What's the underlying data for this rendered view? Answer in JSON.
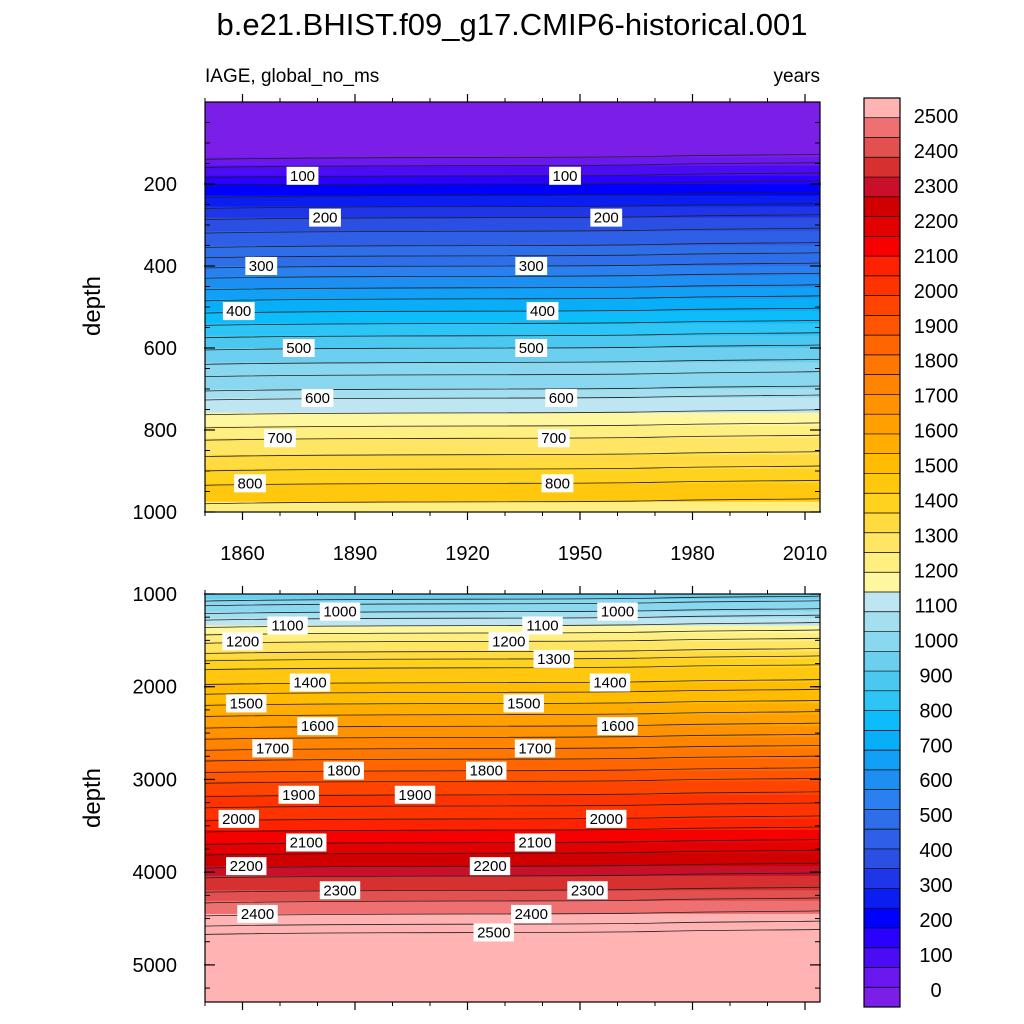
{
  "chart_data": {
    "type": "contour",
    "title": "b.e21.BHIST.f09_g17.CMIP6-historical.001",
    "left_string": "IAGE, global_no_ms",
    "right_string": "years",
    "xlabel": "",
    "ylabel": "depth",
    "xlim": [
      1850,
      2014
    ],
    "x_ticks": [
      "1860",
      "1890",
      "1920",
      "1950",
      "1980",
      "2010"
    ],
    "x_tick_values": [
      1860,
      1890,
      1920,
      1950,
      1980,
      2010
    ],
    "levels": [
      0,
      100,
      200,
      300,
      400,
      500,
      600,
      700,
      800,
      900,
      1000,
      1100,
      1200,
      1300,
      1400,
      1500,
      1600,
      1700,
      1800,
      1900,
      2000,
      2100,
      2200,
      2300,
      2400,
      2500
    ],
    "colorbar_labels": [
      "2500",
      "2400",
      "2300",
      "2200",
      "2100",
      "2000",
      "1900",
      "1800",
      "1700",
      "1600",
      "1500",
      "1400",
      "1300",
      "1200",
      "1100",
      "1000",
      "900",
      "800",
      "700",
      "600",
      "500",
      "400",
      "300",
      "200",
      "100",
      "0"
    ],
    "colors": [
      "#7b1fe8",
      "#6a17f0",
      "#4b0cf5",
      "#2a00ff",
      "#0000ff",
      "#0a1ef2",
      "#1f35e8",
      "#2c4fe3",
      "#2f5fe6",
      "#2f6ee9",
      "#2a80ee",
      "#1e8ff2",
      "#129ff6",
      "#09aef9",
      "#0dbcfb",
      "#2dc4f6",
      "#4bc8f0",
      "#6ccff0",
      "#8ad8f0",
      "#a4dff0",
      "#bde6f2",
      "#fff6a0",
      "#ffee80",
      "#ffe564",
      "#ffdb3f",
      "#ffd21e",
      "#ffc80f",
      "#ffbc00",
      "#ffae00",
      "#ffa000",
      "#ff9200",
      "#ff8400",
      "#ff7600",
      "#ff6600",
      "#ff5500",
      "#ff4400",
      "#ff3300",
      "#ff2200",
      "#f60000",
      "#e20000",
      "#d00000",
      "#c8102a",
      "#d63030",
      "#e35050",
      "#ef7070",
      "#ffb3b3"
    ],
    "panels": [
      {
        "name": "upper",
        "ylim": [
          0,
          1000
        ],
        "y_ticks": [
          "200",
          "400",
          "600",
          "800",
          "1000"
        ],
        "y_tick_values": [
          200,
          400,
          600,
          800,
          1000
        ],
        "data_top": 0,
        "isolines": [
          {
            "depth": 135,
            "label": "",
            "label_x": []
          },
          {
            "depth": 155,
            "label": "",
            "label_x": []
          },
          {
            "depth": 180,
            "label": "100",
            "label_x": [
              1876,
              1946
            ]
          },
          {
            "depth": 200,
            "label": "",
            "label_x": []
          },
          {
            "depth": 228,
            "label": "",
            "label_x": []
          },
          {
            "depth": 255,
            "label": "",
            "label_x": []
          },
          {
            "depth": 282,
            "label": "200",
            "label_x": [
              1882,
              1957
            ]
          },
          {
            "depth": 315,
            "label": "",
            "label_x": []
          },
          {
            "depth": 350,
            "label": "",
            "label_x": []
          },
          {
            "depth": 375,
            "label": "",
            "label_x": []
          },
          {
            "depth": 400,
            "label": "300",
            "label_x": [
              1865,
              1937
            ]
          },
          {
            "depth": 425,
            "label": "",
            "label_x": []
          },
          {
            "depth": 453,
            "label": "",
            "label_x": []
          },
          {
            "depth": 480,
            "label": "",
            "label_x": []
          },
          {
            "depth": 510,
            "label": "400",
            "label_x": [
              1859,
              1940
            ]
          },
          {
            "depth": 540,
            "label": "",
            "label_x": []
          },
          {
            "depth": 570,
            "label": "",
            "label_x": []
          },
          {
            "depth": 600,
            "label": "500",
            "label_x": [
              1875,
              1937
            ]
          },
          {
            "depth": 635,
            "label": "",
            "label_x": []
          },
          {
            "depth": 665,
            "label": "",
            "label_x": []
          },
          {
            "depth": 700,
            "label": "",
            "label_x": []
          },
          {
            "depth": 722,
            "label": "600",
            "label_x": [
              1880,
              1945
            ]
          },
          {
            "depth": 758,
            "label": "",
            "label_x": []
          },
          {
            "depth": 790,
            "label": "",
            "label_x": []
          },
          {
            "depth": 820,
            "label": "700",
            "label_x": [
              1870,
              1943
            ]
          },
          {
            "depth": 860,
            "label": "",
            "label_x": []
          },
          {
            "depth": 895,
            "label": "",
            "label_x": []
          },
          {
            "depth": 930,
            "label": "800",
            "label_x": [
              1862,
              1944
            ]
          },
          {
            "depth": 975,
            "label": "",
            "label_x": []
          }
        ]
      },
      {
        "name": "lower",
        "ylim": [
          1000,
          5400
        ],
        "y_ticks": [
          "1000",
          "2000",
          "3000",
          "4000",
          "5000"
        ],
        "y_tick_values": [
          1000,
          2000,
          3000,
          4000,
          5000
        ],
        "data_top": 1000,
        "isolines": [
          {
            "depth": 1055,
            "label": "",
            "label_x": []
          },
          {
            "depth": 1105,
            "label": "",
            "label_x": []
          },
          {
            "depth": 1190,
            "label": "1000",
            "label_x": [
              1886,
              1960
            ]
          },
          {
            "depth": 1260,
            "label": "",
            "label_x": []
          },
          {
            "depth": 1340,
            "label": "1100",
            "label_x": [
              1872,
              1940
            ]
          },
          {
            "depth": 1420,
            "label": "",
            "label_x": []
          },
          {
            "depth": 1510,
            "label": "1200",
            "label_x": [
              1860,
              1931
            ]
          },
          {
            "depth": 1620,
            "label": "",
            "label_x": []
          },
          {
            "depth": 1700,
            "label": "1300",
            "label_x": [
              1943
            ]
          },
          {
            "depth": 1795,
            "label": "",
            "label_x": []
          },
          {
            "depth": 1955,
            "label": "1400",
            "label_x": [
              1878,
              1958
            ]
          },
          {
            "depth": 2060,
            "label": "",
            "label_x": []
          },
          {
            "depth": 2180,
            "label": "1500",
            "label_x": [
              1861,
              1935
            ]
          },
          {
            "depth": 2300,
            "label": "",
            "label_x": []
          },
          {
            "depth": 2425,
            "label": "1600",
            "label_x": [
              1880,
              1960
            ]
          },
          {
            "depth": 2545,
            "label": "",
            "label_x": []
          },
          {
            "depth": 2665,
            "label": "1700",
            "label_x": [
              1868,
              1938
            ]
          },
          {
            "depth": 2780,
            "label": "",
            "label_x": []
          },
          {
            "depth": 2905,
            "label": "1800",
            "label_x": [
              1887,
              1925
            ]
          },
          {
            "depth": 3020,
            "label": "",
            "label_x": []
          },
          {
            "depth": 3165,
            "label": "1900",
            "label_x": [
              1875,
              1906
            ]
          },
          {
            "depth": 3285,
            "label": "",
            "label_x": []
          },
          {
            "depth": 3425,
            "label": "2000",
            "label_x": [
              1859,
              1957
            ]
          },
          {
            "depth": 3545,
            "label": "",
            "label_x": []
          },
          {
            "depth": 3680,
            "label": "2100",
            "label_x": [
              1877,
              1938
            ]
          },
          {
            "depth": 3795,
            "label": "",
            "label_x": []
          },
          {
            "depth": 3935,
            "label": "2200",
            "label_x": [
              1861,
              1926
            ]
          },
          {
            "depth": 4040,
            "label": "",
            "label_x": []
          },
          {
            "depth": 4195,
            "label": "2300",
            "label_x": [
              1886,
              1952
            ]
          },
          {
            "depth": 4310,
            "label": "",
            "label_x": []
          },
          {
            "depth": 4450,
            "label": "2400",
            "label_x": [
              1864,
              1937
            ]
          },
          {
            "depth": 4560,
            "label": "",
            "label_x": []
          },
          {
            "depth": 4650,
            "label": "2500",
            "label_x": [
              1927
            ]
          }
        ]
      }
    ]
  }
}
